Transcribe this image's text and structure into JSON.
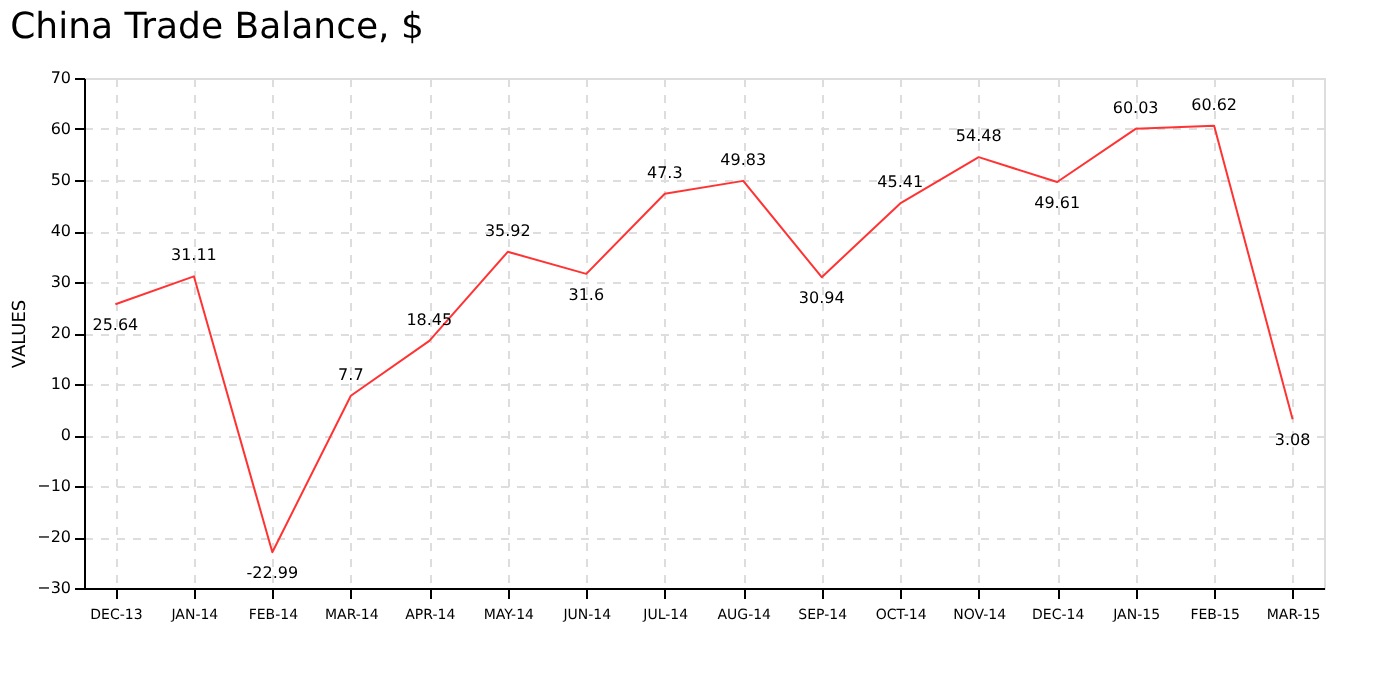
{
  "chart_data": {
    "type": "line",
    "title": "China Trade Balance, $",
    "ylabel": "VALUES",
    "categories": [
      "DEC-13",
      "JAN-14",
      "FEB-14",
      "MAR-14",
      "APR-14",
      "MAY-14",
      "JUN-14",
      "JUL-14",
      "AUG-14",
      "SEP-14",
      "OCT-14",
      "NOV-14",
      "DEC-14",
      "JAN-15",
      "FEB-15",
      "MAR-15"
    ],
    "series": [
      {
        "color": "#ff3333",
        "values": [
          25.64,
          31.11,
          -22.99,
          7.7,
          18.45,
          35.92,
          31.6,
          47.3,
          49.83,
          30.94,
          45.41,
          54.48,
          49.61,
          60.03,
          60.62,
          3.08
        ]
      }
    ],
    "ylim": [
      -30,
      70
    ],
    "yticks": [
      -30,
      -20,
      -10,
      0,
      10,
      20,
      30,
      40,
      50,
      60,
      70
    ],
    "grid": true,
    "data_labels": true,
    "marker": "none",
    "line_style": "solid"
  }
}
